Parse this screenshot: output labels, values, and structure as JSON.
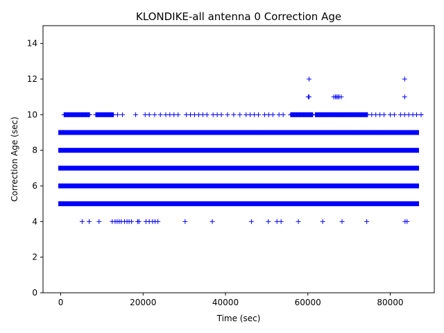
{
  "chart_data": {
    "type": "scatter",
    "title": "KLONDIKE-all antenna 0 Correction Age",
    "xlabel": "Time (sec)",
    "ylabel": "Correction Age (sec)",
    "xlim": [
      -4300,
      90700
    ],
    "ylim": [
      0,
      15
    ],
    "x_ticks": [
      0,
      20000,
      40000,
      60000,
      80000
    ],
    "y_ticks": [
      0,
      2,
      4,
      6,
      8,
      10,
      12,
      14
    ],
    "marker": "plus",
    "marker_color": "#0000ff",
    "grid": false,
    "dense_bands": [
      {
        "y": 5,
        "x_start": 0,
        "x_end": 86400
      },
      {
        "y": 6,
        "x_start": 0,
        "x_end": 86400
      },
      {
        "y": 7,
        "x_start": 0,
        "x_end": 86400
      },
      {
        "y": 8,
        "x_start": 0,
        "x_end": 86400
      },
      {
        "y": 9,
        "x_start": 0,
        "x_end": 86400
      }
    ],
    "clustered_bands": [
      {
        "y": 10,
        "segments": [
          [
            800,
            7000
          ],
          [
            8500,
            12800
          ],
          [
            55800,
            61200
          ],
          [
            61800,
            74500
          ],
          [
            87500,
            87500
          ]
        ]
      }
    ],
    "points": [
      {
        "y": 10,
        "x": [
          13800,
          15000,
          18200,
          20500,
          21500,
          22800,
          24200,
          25500,
          26500,
          27500,
          28500,
          30500,
          31500,
          32500,
          33500,
          34500,
          35500,
          37000,
          38000,
          39000,
          40500,
          42000,
          43500,
          45000,
          46000,
          47000,
          48000,
          49500,
          50500,
          51500,
          53000,
          54000,
          75500,
          76500,
          77500,
          78500,
          80000,
          81000,
          82500,
          83500,
          84500,
          85500,
          86400
        ]
      },
      {
        "y": 4,
        "x": [
          5200,
          6900,
          9300,
          12500,
          13200,
          13700,
          14200,
          14700,
          15500,
          16100,
          16600,
          17200,
          18700,
          19000,
          20700,
          21500,
          22300,
          22900,
          23600,
          30200,
          36800,
          46300,
          50400,
          52500,
          53500,
          57700,
          63600,
          68300,
          74300,
          83600,
          84100
        ]
      },
      {
        "y": 11,
        "x": [
          60100,
          60300,
          66300,
          66700,
          67000,
          67300,
          67600,
          68100,
          83500
        ]
      },
      {
        "y": 12,
        "x": [
          60300,
          83500
        ]
      }
    ]
  }
}
